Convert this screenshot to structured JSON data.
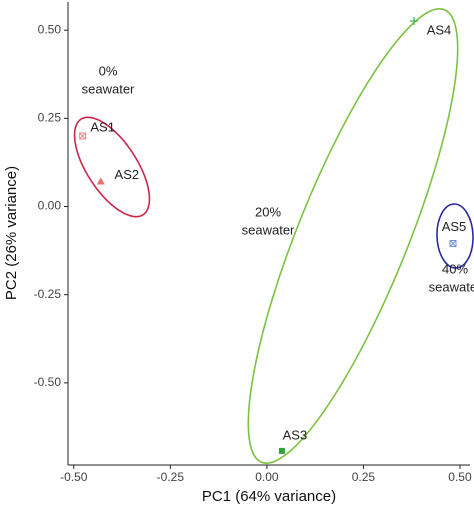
{
  "chart_data": {
    "type": "scatter",
    "x_label": "PC1 (64% variance)",
    "y_label": "PC2 (26% variance)",
    "labels": [
      "AS1",
      "AS2",
      "AS3",
      "AS4",
      "AS5"
    ],
    "x": [
      -0.477,
      -0.43,
      0.039,
      0.381,
      0.482
    ],
    "values": [
      0.2,
      0.071,
      -0.693,
      0.526,
      -0.105
    ],
    "colors": [
      "#f08a8a",
      "#ea6f6f",
      "#2aa63a",
      "#3cb44b",
      "#6a8fe0"
    ],
    "markers": [
      "square-x",
      "triangle",
      "square",
      "plus",
      "square-x"
    ],
    "groups": [
      {
        "label": [
          "0%",
          "seawater"
        ],
        "color": "#c8284a"
      },
      {
        "label": [
          "20%",
          "seawater"
        ],
        "color": "#7cc242"
      },
      {
        "label": [
          "40%",
          "seawater"
        ],
        "color": "#2b2a9e"
      }
    ],
    "xlim": [
      -0.515,
      0.526
    ],
    "ylim": [
      -0.733,
      0.58
    ],
    "xticks": [
      {
        "value": -0.5,
        "label": "-0.50"
      },
      -0.25,
      {
        "value": 0,
        "label": "0.00"
      },
      0.25,
      {
        "value": 0.5,
        "label": "0.50"
      }
    ],
    "yticks": [
      {
        "value": 0.5,
        "label": "0.50"
      },
      0.25,
      {
        "value": 0,
        "label": "0.00"
      },
      -0.25,
      {
        "value": -0.5,
        "label": "-0.50"
      }
    ],
    "grid": false
  }
}
